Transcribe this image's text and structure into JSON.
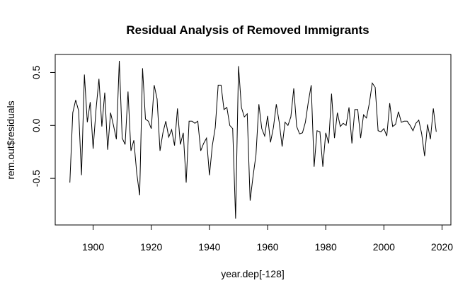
{
  "chart_data": {
    "type": "line",
    "title": "Residual Analysis of Removed Immigrants",
    "x_label": "year.dep[-128]",
    "y_label": "rem.out$residuals",
    "x": [
      1892,
      1893,
      1894,
      1895,
      1896,
      1897,
      1898,
      1899,
      1900,
      1901,
      1902,
      1903,
      1904,
      1905,
      1906,
      1907,
      1908,
      1909,
      1910,
      1911,
      1912,
      1913,
      1914,
      1915,
      1916,
      1917,
      1918,
      1919,
      1920,
      1921,
      1922,
      1923,
      1924,
      1925,
      1926,
      1927,
      1928,
      1929,
      1930,
      1931,
      1932,
      1933,
      1934,
      1935,
      1936,
      1937,
      1938,
      1939,
      1940,
      1941,
      1942,
      1943,
      1944,
      1945,
      1946,
      1947,
      1948,
      1949,
      1950,
      1951,
      1952,
      1953,
      1954,
      1955,
      1956,
      1957,
      1958,
      1959,
      1960,
      1961,
      1962,
      1963,
      1964,
      1965,
      1966,
      1967,
      1968,
      1969,
      1970,
      1971,
      1972,
      1973,
      1974,
      1975,
      1976,
      1977,
      1978,
      1979,
      1980,
      1981,
      1982,
      1983,
      1984,
      1985,
      1986,
      1987,
      1988,
      1989,
      1990,
      1991,
      1992,
      1993,
      1994,
      1995,
      1996,
      1997,
      1998,
      1999,
      2000,
      2001,
      2002,
      2003,
      2004,
      2005,
      2006,
      2007,
      2008,
      2009,
      2010,
      2011,
      2012,
      2013,
      2014,
      2015,
      2016,
      2017,
      2018
    ],
    "y": [
      -0.54,
      0.12,
      0.24,
      0.14,
      -0.47,
      0.48,
      0.03,
      0.22,
      -0.22,
      0.15,
      0.44,
      -0.01,
      0.31,
      -0.23,
      0.12,
      0.0,
      -0.13,
      0.61,
      -0.12,
      -0.18,
      0.32,
      -0.24,
      -0.14,
      -0.45,
      -0.66,
      0.54,
      0.06,
      0.04,
      -0.03,
      0.38,
      0.25,
      -0.24,
      -0.07,
      0.04,
      -0.11,
      -0.04,
      -0.19,
      0.16,
      -0.18,
      -0.07,
      -0.54,
      0.04,
      0.04,
      0.02,
      0.04,
      -0.24,
      -0.17,
      -0.12,
      -0.47,
      -0.19,
      -0.02,
      0.38,
      0.38,
      0.15,
      0.17,
      0.0,
      -0.03,
      -0.88,
      0.56,
      0.17,
      0.08,
      0.11,
      -0.71,
      -0.48,
      -0.28,
      0.2,
      -0.03,
      -0.1,
      0.09,
      -0.16,
      -0.02,
      0.2,
      0.03,
      -0.2,
      0.03,
      0.0,
      0.08,
      0.35,
      -0.01,
      -0.08,
      -0.07,
      0.03,
      0.22,
      0.38,
      -0.39,
      -0.05,
      -0.06,
      -0.39,
      -0.07,
      -0.17,
      0.3,
      -0.12,
      0.12,
      -0.01,
      0.02,
      0.0,
      0.17,
      -0.17,
      0.15,
      0.15,
      -0.12,
      0.1,
      0.07,
      0.21,
      0.4,
      0.36,
      -0.05,
      -0.06,
      -0.03,
      -0.1,
      0.21,
      -0.01,
      0.01,
      0.13,
      0.03,
      0.04,
      0.04,
      0.0,
      -0.05,
      0.02,
      0.05,
      -0.08,
      -0.29,
      0.01,
      -0.13,
      0.16,
      -0.06
    ],
    "color": "#000000",
    "xlim": [
      1886.96,
      2023.04
    ],
    "ylim": [
      -0.94,
      0.67
    ],
    "xticks": [
      1900,
      1920,
      1940,
      1960,
      1980,
      2000,
      2020
    ],
    "yticks": [
      -0.5,
      {
        "value": 0,
        "label": "0.0"
      },
      0.5
    ]
  }
}
